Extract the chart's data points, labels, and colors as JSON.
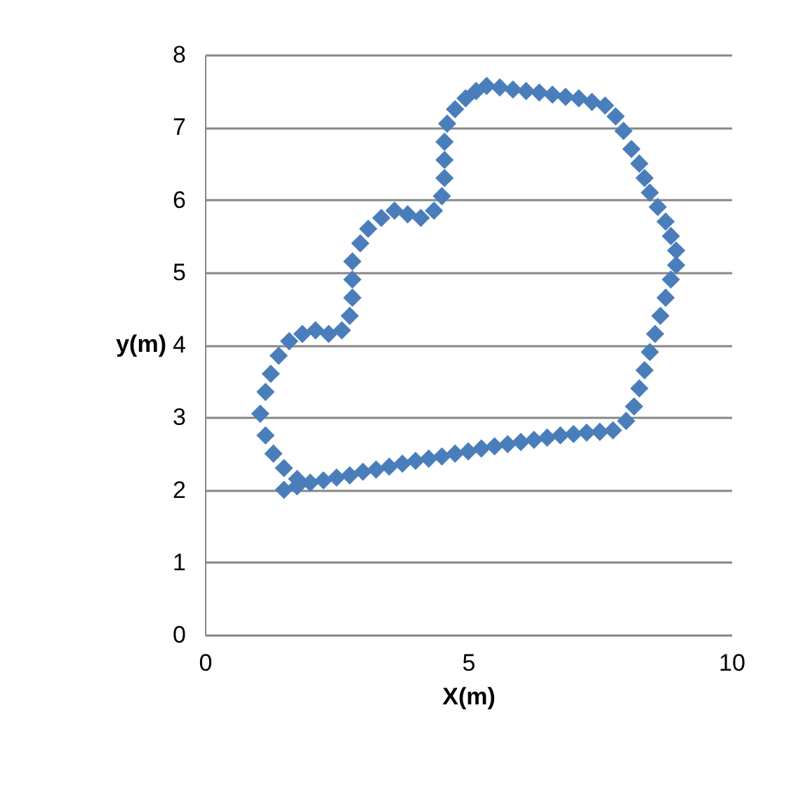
{
  "chart_data": {
    "type": "scatter",
    "xlabel": "X(m)",
    "ylabel": "y(m)",
    "xlim": [
      0,
      10
    ],
    "xticks": [
      0,
      5,
      10
    ],
    "ylim": [
      0,
      8
    ],
    "yticks": [
      0,
      1,
      2,
      3,
      4,
      5,
      6,
      7,
      8
    ],
    "grid": "y",
    "marker": "diamond",
    "series": [
      {
        "color": "#4a7ebb",
        "x": [
          1.5,
          1.75,
          2.0,
          2.25,
          2.5,
          2.75,
          3.0,
          3.25,
          3.5,
          3.75,
          4.0,
          4.25,
          4.5,
          4.75,
          5.0,
          5.25,
          5.5,
          5.75,
          6.0,
          6.25,
          6.5,
          6.75,
          7.0,
          7.25,
          7.5,
          7.75,
          8.0,
          8.15,
          8.25,
          8.35,
          8.45,
          8.55,
          8.65,
          8.75,
          8.85,
          8.95,
          8.95,
          8.85,
          8.75,
          8.6,
          8.45,
          8.35,
          8.25,
          8.1,
          7.95,
          7.8,
          7.6,
          7.35,
          7.1,
          6.85,
          6.6,
          6.35,
          6.1,
          5.85,
          5.6,
          5.35,
          5.15,
          4.95,
          4.75,
          4.6,
          4.55,
          4.55,
          4.55,
          4.5,
          4.35,
          4.1,
          3.85,
          3.6,
          3.35,
          3.1,
          2.95,
          2.8,
          2.8,
          2.8,
          2.75,
          2.6,
          2.35,
          2.1,
          1.85,
          1.6,
          1.4,
          1.25,
          1.15,
          1.05,
          1.15,
          1.3,
          1.5,
          1.75
        ],
        "values": [
          2.0,
          2.05,
          2.1,
          2.13,
          2.17,
          2.2,
          2.25,
          2.28,
          2.32,
          2.36,
          2.4,
          2.43,
          2.46,
          2.5,
          2.53,
          2.57,
          2.6,
          2.63,
          2.66,
          2.69,
          2.72,
          2.75,
          2.77,
          2.79,
          2.8,
          2.82,
          2.95,
          3.15,
          3.4,
          3.65,
          3.9,
          4.15,
          4.4,
          4.65,
          4.9,
          5.1,
          5.3,
          5.5,
          5.7,
          5.9,
          6.1,
          6.3,
          6.5,
          6.7,
          6.95,
          7.15,
          7.3,
          7.35,
          7.4,
          7.42,
          7.45,
          7.48,
          7.5,
          7.52,
          7.55,
          7.57,
          7.5,
          7.4,
          7.25,
          7.05,
          6.8,
          6.55,
          6.3,
          6.05,
          5.85,
          5.75,
          5.8,
          5.85,
          5.75,
          5.6,
          5.4,
          5.15,
          4.9,
          4.65,
          4.4,
          4.2,
          4.15,
          4.2,
          4.15,
          4.05,
          3.85,
          3.6,
          3.35,
          3.05,
          2.75,
          2.5,
          2.3,
          2.15
        ]
      }
    ]
  }
}
